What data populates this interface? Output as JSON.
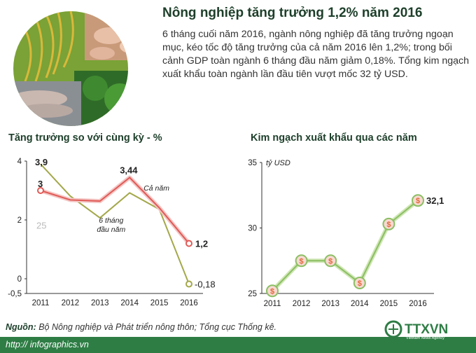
{
  "header": {
    "title": "Nông nghiệp tăng trưởng 1,2% năm 2016",
    "intro": "6 tháng cuối năm 2016, ngành nông nghiệp đã tăng trưởng ngoạn mục, kéo tốc độ tăng trưởng của cả năm 2016 lên 1,2%; trong bối cảnh GDP toàn ngành 6 tháng đầu năm giảm 0,18%. Tổng kim ngạch xuất khẩu toàn ngành lần đầu tiên vượt mốc 32 tỷ USD."
  },
  "footer": {
    "source_label": "Nguồn:",
    "source_text": " Bộ Nông nghiệp và Phát triển nông thôn; Tổng cục Thống kê.",
    "url": "http:// infographics.vn",
    "logo_text": "TTXVN",
    "logo_sub": "Vietnam News Agency"
  },
  "colors": {
    "green": "#2e7d45",
    "red": "#e05a56",
    "olive": "#a3a84a",
    "pink": "#f0a8a6",
    "light_green": "#b6d98c"
  },
  "chart_data": [
    {
      "type": "line",
      "title": "Tăng trưởng so với cùng kỳ - %",
      "categories": [
        "2011",
        "2012",
        "2013",
        "2014",
        "2015",
        "2016"
      ],
      "y_ticks": [
        "4",
        "2",
        "0",
        "-0,5"
      ],
      "ylim": [
        -0.5,
        4
      ],
      "series": [
        {
          "name": "Cả năm",
          "values": [
            3,
            2.68,
            2.64,
            3.44,
            2.41,
            1.2
          ],
          "color": "#e05a56"
        },
        {
          "name": "6 tháng đầu năm",
          "values": [
            3.9,
            2.81,
            2.07,
            2.92,
            2.36,
            -0.18
          ],
          "color": "#a3a84a"
        }
      ],
      "data_labels": [
        "3,9",
        "3",
        "3,44",
        "1,2",
        "-0,18"
      ],
      "annotation": "25"
    },
    {
      "type": "line",
      "title": "Kim ngạch xuất khẩu qua các năm",
      "ylabel": "tỷ USD",
      "categories": [
        "2011",
        "2012",
        "2013",
        "2014",
        "2015",
        "2016"
      ],
      "y_ticks": [
        "35",
        "30",
        "25"
      ],
      "ylim": [
        25,
        35
      ],
      "series": [
        {
          "name": "",
          "values": [
            25.2,
            27.5,
            27.5,
            25.8,
            30.3,
            32.1
          ],
          "color": "#b6d98c"
        }
      ],
      "data_labels": [
        "32,1"
      ],
      "marker_symbol": "$"
    }
  ]
}
